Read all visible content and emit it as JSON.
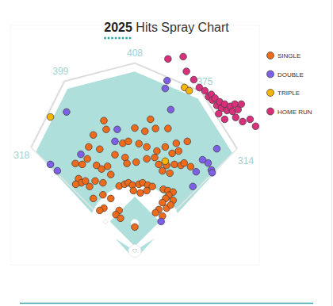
{
  "chart_data": {
    "type": "scatter",
    "title": "2025 Hits Spray Chart",
    "xlim": [
      -270,
      270
    ],
    "ylim": [
      -30,
      490
    ],
    "tick_labels": false,
    "grid": false,
    "legend": "top-right",
    "fence": [
      318,
      399,
      408,
      375,
      314
    ],
    "series": [
      {
        "name": "SINGLE",
        "color": "#ef6b1c",
        "marker": "circle",
        "x": [
          -67,
          -62,
          0,
          22,
          45,
          72,
          -26,
          -14,
          9,
          26,
          48,
          66,
          90,
          95,
          81,
          26,
          43,
          -21,
          -43,
          -76,
          -100,
          -103,
          -114,
          -129,
          -83,
          -72,
          -59,
          -17,
          3,
          52,
          69,
          86,
          100,
          107,
          121,
          60,
          76,
          -122,
          -116,
          -128,
          -107,
          -86,
          -98,
          -69,
          -52,
          -34,
          -22,
          -14,
          -5,
          9,
          17,
          28,
          38,
          12,
          -3,
          26,
          62,
          72,
          83,
          74,
          67,
          60,
          69,
          52,
          60,
          45,
          -69,
          -52,
          -67,
          -34,
          -41,
          -31,
          0,
          83,
          78,
          -90,
          -76,
          34,
          114,
          -90
        ],
        "values": [
          283,
          264,
          267,
          260,
          266,
          266,
          234,
          238,
          233,
          226,
          217,
          226,
          234,
          217,
          212,
          200,
          203,
          203,
          209,
          221,
          226,
          200,
          188,
          190,
          186,
          178,
          184,
          190,
          193,
          188,
          186,
          188,
          186,
          191,
          183,
          174,
          169,
          157,
          148,
          145,
          152,
          152,
          140,
          148,
          166,
          141,
          145,
          148,
          143,
          145,
          148,
          143,
          140,
          126,
          131,
          131,
          134,
          131,
          128,
          121,
          114,
          105,
          93,
          90,
          76,
          83,
          122,
          114,
          93,
          88,
          79,
          71,
          52,
          110,
          100,
          114,
          88,
          286,
          238,
          252
        ]
      },
      {
        "name": "DOUBLE",
        "color": "#7e5fe6",
        "marker": "circle",
        "x": [
          -148,
          -183,
          -168,
          -117,
          -38,
          -43,
          70,
          78,
          66,
          159,
          178,
          166,
          168,
          147,
          126,
          133,
          57
        ],
        "values": [
          302,
          188,
          174,
          210,
          264,
          238,
          370,
          307,
          353,
          191,
          222,
          176,
          170,
          198,
          140,
          172,
          64
        ]
      },
      {
        "name": "TRIPLE",
        "color": "#f7b500",
        "marker": "circle",
        "x": [
          -183,
          108,
          118,
          66
        ],
        "values": [
          291,
          355,
          348,
          195
        ]
      },
      {
        "name": "HOME RUN",
        "color": "#d9307c",
        "marker": "circle",
        "x": [
          72,
          105,
          112,
          128,
          140,
          152,
          160,
          166,
          168,
          174,
          178,
          184,
          188,
          195,
          200,
          207,
          212,
          217,
          224,
          231,
          219,
          234,
          250,
          262,
          195,
          182
        ],
        "values": [
          417,
          422,
          390,
          372,
          355,
          348,
          335,
          340,
          328,
          332,
          316,
          324,
          310,
          319,
          305,
          314,
          303,
          319,
          307,
          319,
          290,
          281,
          286,
          271,
          286,
          298
        ]
      }
    ]
  }
}
